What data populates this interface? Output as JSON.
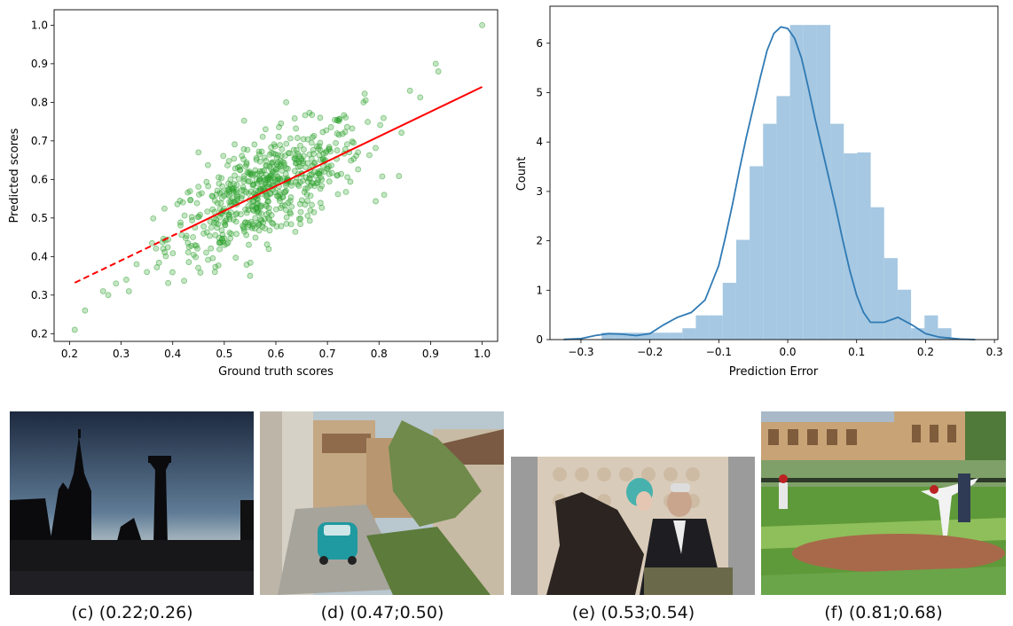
{
  "chart_data": [
    {
      "type": "scatter",
      "xlabel": "Ground truth scores",
      "ylabel": "Predicted scores",
      "xlim": [
        0.17,
        1.03
      ],
      "ylim": [
        0.18,
        1.04
      ],
      "xticks": [
        "0.2",
        "0.3",
        "0.4",
        "0.5",
        "0.6",
        "0.7",
        "0.8",
        "0.9",
        "1.0"
      ],
      "yticks": [
        "0.2",
        "0.3",
        "0.4",
        "0.5",
        "0.6",
        "0.7",
        "0.8",
        "0.9",
        "1.0"
      ],
      "point_color": "#2ca02c",
      "fit_line": {
        "x": [
          0.21,
          1.0
        ],
        "y": [
          0.332,
          0.84
        ],
        "dashed_until_x": 0.42,
        "color": "#ff0000"
      },
      "explicit_points": [
        [
          0.21,
          0.21
        ],
        [
          0.23,
          0.26
        ],
        [
          0.265,
          0.31
        ],
        [
          0.275,
          0.3
        ],
        [
          0.29,
          0.33
        ],
        [
          0.31,
          0.34
        ],
        [
          0.315,
          0.31
        ],
        [
          0.33,
          0.38
        ],
        [
          0.35,
          0.36
        ],
        [
          0.91,
          0.9
        ],
        [
          0.915,
          0.88
        ],
        [
          1.0,
          1.0
        ],
        [
          0.62,
          0.8
        ],
        [
          0.77,
          0.8
        ],
        [
          0.55,
          0.35
        ],
        [
          0.81,
          0.56
        ],
        [
          0.58,
          0.73
        ],
        [
          0.45,
          0.67
        ],
        [
          0.86,
          0.83
        ]
      ],
      "cluster": {
        "n": 620,
        "center": [
          0.58,
          0.57
        ],
        "sd_x": 0.095,
        "sd_y": 0.075,
        "slope": 0.64
      }
    },
    {
      "type": "histogram",
      "xlabel": "Prediction Error",
      "ylabel": "Count",
      "xlim": [
        -0.345,
        0.305
      ],
      "ylim": [
        0,
        6.75
      ],
      "xticks": [
        "−0.3",
        "−0.2",
        "−0.1",
        "0.0",
        "0.1",
        "0.2",
        "0.3"
      ],
      "yticks": [
        "0",
        "1",
        "2",
        "3",
        "4",
        "5",
        "6"
      ],
      "bar_color": "#a6c8e2",
      "kde_color": "#2f7ab4",
      "bins_start": -0.27,
      "bin_width": 0.01952,
      "counts": [
        0.14,
        0.14,
        0.14,
        0.14,
        0.14,
        0.14,
        0.23,
        0.49,
        0.49,
        1.15,
        2.02,
        3.51,
        4.37,
        4.93,
        6.37,
        6.37,
        6.37,
        4.37,
        3.77,
        3.79,
        2.68,
        1.65,
        1.01,
        0.23,
        0.49,
        0.23
      ],
      "kde": [
        [
          -0.325,
          0.003
        ],
        [
          -0.3,
          0.02
        ],
        [
          -0.28,
          0.08
        ],
        [
          -0.26,
          0.12
        ],
        [
          -0.24,
          0.11
        ],
        [
          -0.22,
          0.08
        ],
        [
          -0.2,
          0.12
        ],
        [
          -0.18,
          0.3
        ],
        [
          -0.16,
          0.45
        ],
        [
          -0.14,
          0.55
        ],
        [
          -0.12,
          0.8
        ],
        [
          -0.1,
          1.5
        ],
        [
          -0.09,
          2.1
        ],
        [
          -0.08,
          2.75
        ],
        [
          -0.07,
          3.45
        ],
        [
          -0.06,
          4.1
        ],
        [
          -0.05,
          4.7
        ],
        [
          -0.04,
          5.3
        ],
        [
          -0.03,
          5.85
        ],
        [
          -0.02,
          6.2
        ],
        [
          -0.01,
          6.33
        ],
        [
          0.0,
          6.3
        ],
        [
          0.01,
          6.1
        ],
        [
          0.02,
          5.7
        ],
        [
          0.03,
          5.1
        ],
        [
          0.04,
          4.45
        ],
        [
          0.05,
          3.85
        ],
        [
          0.06,
          3.25
        ],
        [
          0.07,
          2.65
        ],
        [
          0.08,
          2.0
        ],
        [
          0.09,
          1.4
        ],
        [
          0.1,
          0.9
        ],
        [
          0.11,
          0.55
        ],
        [
          0.12,
          0.35
        ],
        [
          0.14,
          0.35
        ],
        [
          0.16,
          0.45
        ],
        [
          0.18,
          0.3
        ],
        [
          0.2,
          0.12
        ],
        [
          0.22,
          0.05
        ],
        [
          0.25,
          0.01
        ],
        [
          0.272,
          0.0
        ]
      ]
    }
  ],
  "captions": [
    {
      "label": "(c) (0.22;0.26)"
    },
    {
      "label": "(d) (0.47;0.50)"
    },
    {
      "label": "(e) (0.53;0.54)"
    },
    {
      "label": "(f) (0.81;0.68)"
    }
  ]
}
